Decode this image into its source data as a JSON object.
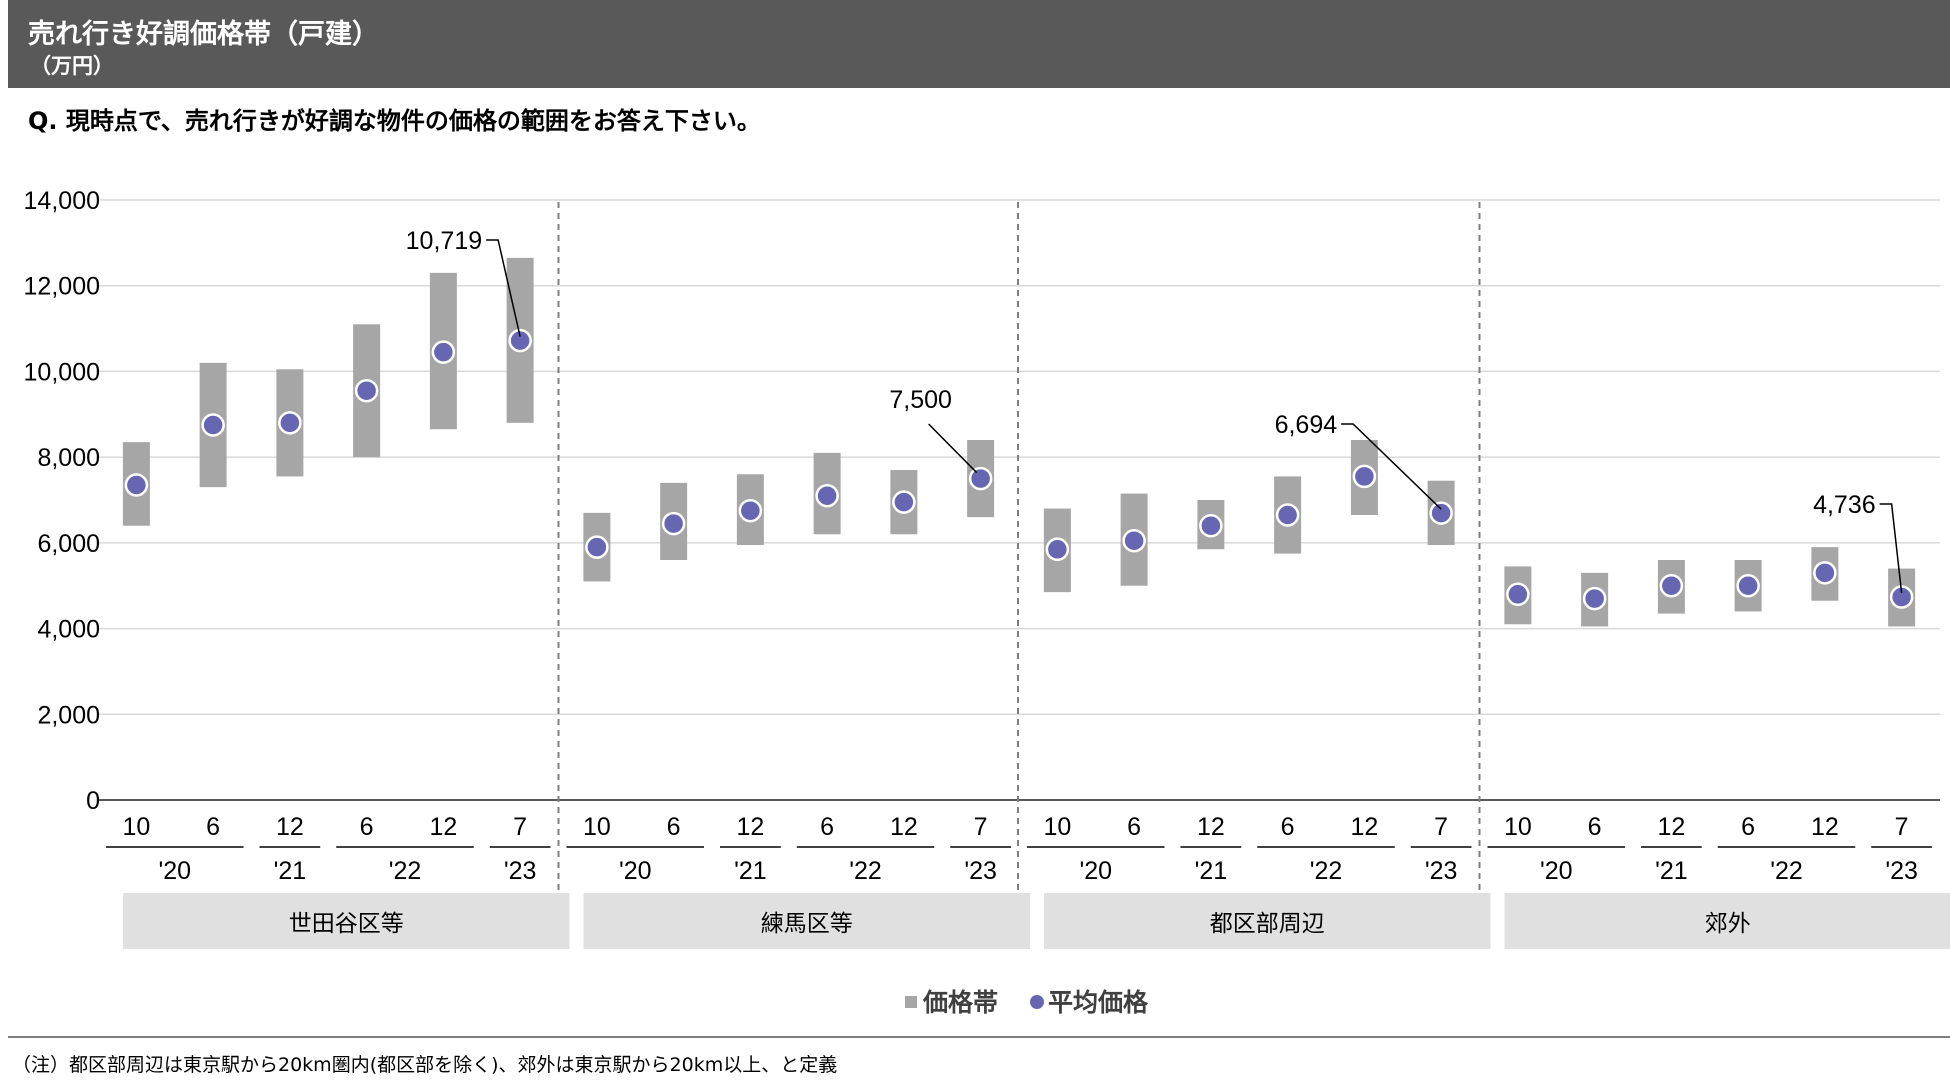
{
  "header": {
    "title": "売れ行き好調価格帯（戸建）",
    "unit": "（万円）"
  },
  "question": "Q. 現時点で、売れ行きが好調な物件の価格の範囲をお答え下さい。",
  "footnote": "（注）都区部周辺は東京駅から20km圏内(都区部を除く)、郊外は東京駅から20km以上、と定義",
  "colors": {
    "band": "#a6a6a6",
    "marker": "#6666b3",
    "header_bg": "#595959"
  },
  "chart_data": {
    "type": "range-bar-with-markers",
    "y_ticks": [
      "0",
      "2,000",
      "4,000",
      "6,000",
      "8,000",
      "10,000",
      "12,000",
      "14,000"
    ],
    "ylim": [
      0,
      14000
    ],
    "x_labels": [
      "10",
      "6",
      "12",
      "6",
      "12",
      "7"
    ],
    "year_labels": [
      "'20",
      "'21",
      "'22",
      "'23"
    ],
    "legend": {
      "band": "価格帯",
      "average": "平均価格",
      "placement": "bottom-center"
    },
    "groups": [
      {
        "name": "世田谷区等",
        "low": [
          6400,
          7300,
          7550,
          8000,
          8650,
          8800
        ],
        "high": [
          8350,
          10200,
          10050,
          11100,
          12300,
          12650
        ],
        "avg": [
          7350,
          8750,
          8800,
          9550,
          10450,
          10719
        ],
        "callout": "10,719"
      },
      {
        "name": "練馬区等",
        "low": [
          5100,
          5600,
          5950,
          6200,
          6200,
          6600
        ],
        "high": [
          6700,
          7400,
          7600,
          8100,
          7700,
          8400
        ],
        "avg": [
          5900,
          6450,
          6750,
          7100,
          6950,
          7500
        ],
        "callout": "7,500"
      },
      {
        "name": "都区部周辺",
        "low": [
          4850,
          5000,
          5850,
          5750,
          6650,
          5950
        ],
        "high": [
          6800,
          7150,
          7000,
          7550,
          8400,
          7450
        ],
        "avg": [
          5850,
          6050,
          6400,
          6650,
          7550,
          6694
        ],
        "callout": "6,694"
      },
      {
        "name": "郊外",
        "low": [
          4100,
          4050,
          4350,
          4400,
          4650,
          4050
        ],
        "high": [
          5450,
          5300,
          5600,
          5600,
          5900,
          5400
        ],
        "avg": [
          4800,
          4700,
          5000,
          5000,
          5300,
          4736
        ],
        "callout": "4,736"
      }
    ]
  }
}
